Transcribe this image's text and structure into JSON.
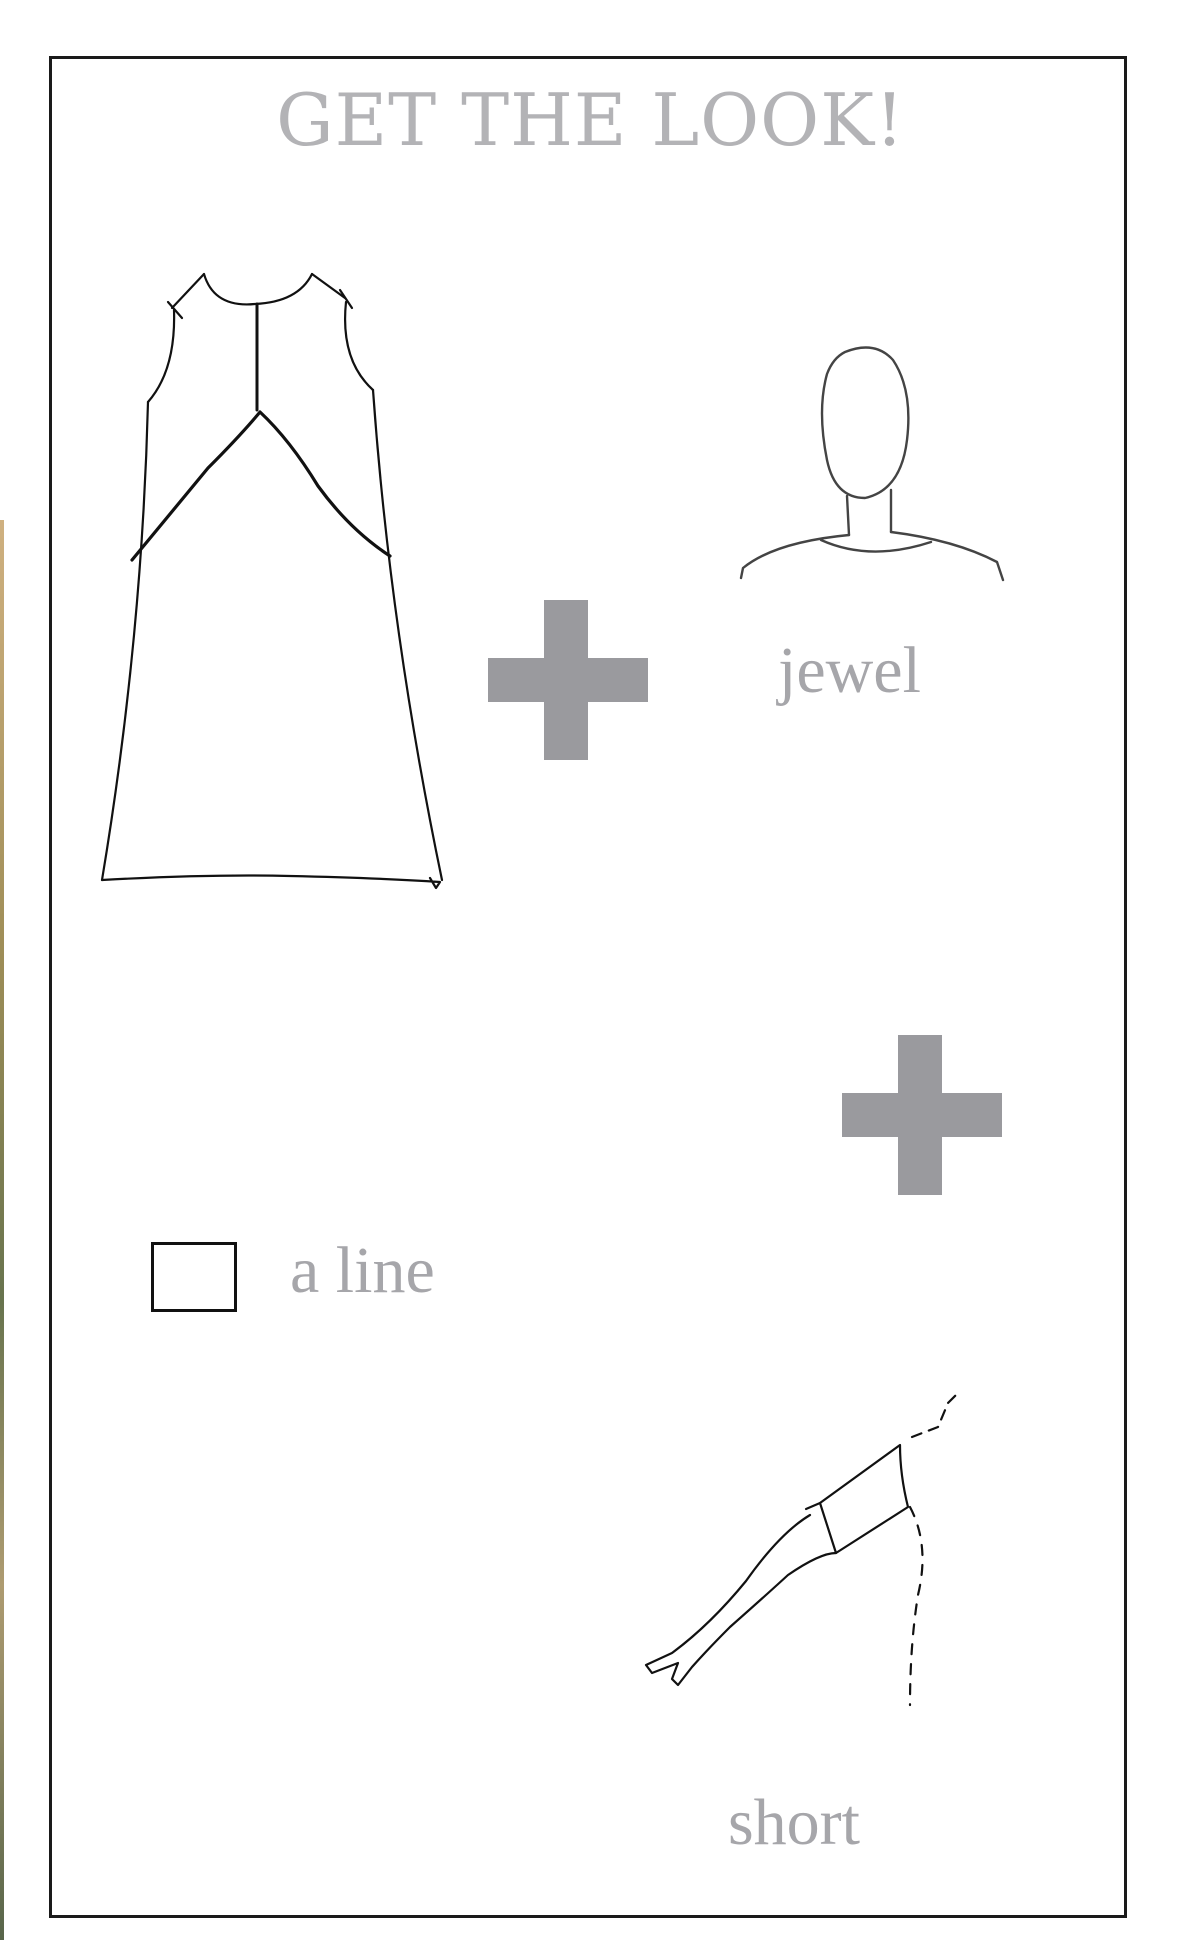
{
  "title": "GET THE LOOK!",
  "labels": {
    "neckline": "jewel",
    "silhouette": "a line",
    "sleeve": "short"
  },
  "icons": {
    "dress": "a-line-dress-sketch-icon",
    "neckline": "jewel-neckline-sketch-icon",
    "sleeve": "short-sleeve-arm-sketch-icon",
    "plus": "plus-icon",
    "checkbox": "checkbox"
  },
  "colors": {
    "title": "#b3b3b6",
    "label": "#a6a6aa",
    "plus": "#9a9a9e",
    "frame": "#1a1a1a",
    "sketch": "#111111"
  }
}
